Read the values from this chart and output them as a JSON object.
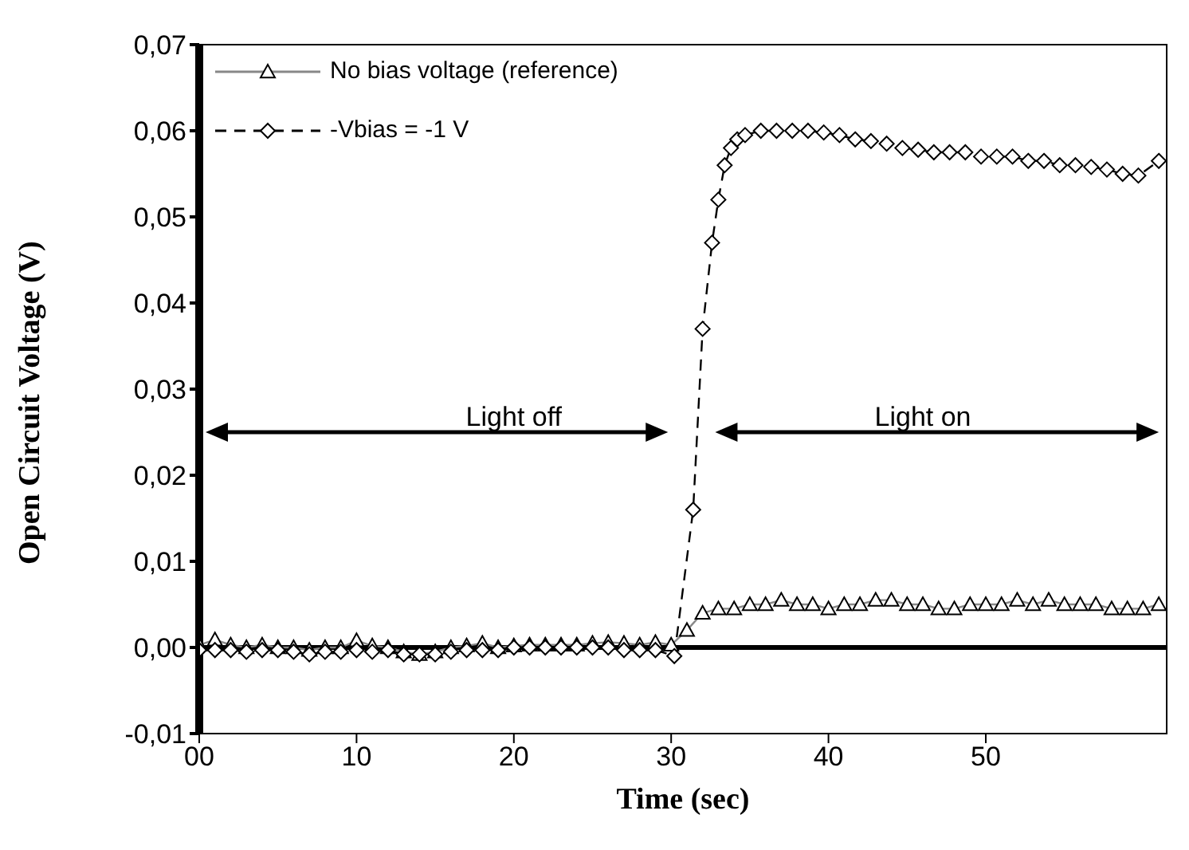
{
  "chart_data": {
    "type": "line",
    "xlabel": "Time (sec)",
    "ylabel": "Open Circuit Voltage (V)",
    "xlim": [
      0,
      61.5
    ],
    "xticks": [
      {
        "value": 0,
        "label": "00"
      },
      10,
      20,
      30,
      40,
      50
    ],
    "ylim": [
      -0.01,
      0.07
    ],
    "yticks": [
      {
        "value": -0.01,
        "label": "-0,01"
      },
      {
        "value": 0,
        "label": "0,00"
      },
      {
        "value": 0.01,
        "label": "0,01"
      },
      {
        "value": 0.02,
        "label": "0,02"
      },
      {
        "value": 0.03,
        "label": "0,03"
      },
      {
        "value": 0.04,
        "label": "0,04"
      },
      {
        "value": 0.05,
        "label": "0,05"
      },
      {
        "value": 0.06,
        "label": "0,06"
      },
      {
        "value": 0.07,
        "label": "0,07"
      }
    ],
    "legend": "top left",
    "ref_lines": [
      {
        "axis": "y",
        "value": 0,
        "color": "#000000"
      }
    ],
    "annotations": [
      "Light off",
      "Light on"
    ],
    "series": [
      {
        "name": "No bias voltage (reference)",
        "color": "#888888",
        "marker": "triangle",
        "line_style": "solid",
        "x": [
          0,
          1,
          2,
          3,
          4,
          5,
          6,
          7,
          8,
          9,
          10,
          11,
          12,
          13,
          14,
          15,
          16,
          17,
          18,
          19,
          20,
          21,
          22,
          23,
          24,
          25,
          26,
          27,
          28,
          29,
          30,
          31,
          32,
          33,
          34,
          35,
          36,
          37,
          38,
          39,
          40,
          41,
          42,
          43,
          44,
          45,
          46,
          47,
          48,
          49,
          50,
          51,
          52,
          53,
          54,
          55,
          56,
          57,
          58,
          59,
          60,
          61
        ],
        "values": [
          0.0003,
          0.0009,
          0.0003,
          0,
          0.0003,
          0,
          0,
          -0.0003,
          0,
          0,
          0.0008,
          0.0002,
          0,
          -0.0005,
          -0.0008,
          -0.0005,
          0,
          0.0002,
          0.0005,
          0,
          0.0002,
          0.0003,
          0.0003,
          0.0003,
          0.0003,
          0.0005,
          0.0006,
          0.0005,
          0.0003,
          0.0006,
          0.0003,
          0.002,
          0.004,
          0.0045,
          0.0045,
          0.005,
          0.005,
          0.0055,
          0.005,
          0.005,
          0.0045,
          0.005,
          0.005,
          0.0055,
          0.0055,
          0.005,
          0.005,
          0.0045,
          0.0045,
          0.005,
          0.005,
          0.005,
          0.0055,
          0.005,
          0.0055,
          0.005,
          0.005,
          0.005,
          0.0045,
          0.0045,
          0.0045,
          0.005
        ]
      },
      {
        "name": "-Vbias = -1 V",
        "color": "#000000",
        "marker": "diamond",
        "line_style": "dashed",
        "x": [
          0,
          1,
          2,
          3,
          4,
          5,
          6,
          7,
          8,
          9,
          10,
          11,
          12,
          13,
          14,
          15,
          16,
          17,
          18,
          19,
          20,
          21,
          22,
          23,
          24,
          25,
          26,
          27,
          28,
          29,
          30.2,
          31.4,
          32,
          32.6,
          33,
          33.4,
          33.8,
          34.2,
          34.7,
          35.7,
          36.7,
          37.7,
          38.7,
          39.7,
          40.7,
          41.7,
          42.7,
          43.7,
          44.7,
          45.7,
          46.7,
          47.7,
          48.7,
          49.7,
          50.7,
          51.7,
          52.7,
          53.7,
          54.7,
          55.7,
          56.7,
          57.7,
          58.7,
          59.7,
          61
        ],
        "values": [
          -0.0003,
          -0.0003,
          -0.0003,
          -0.0005,
          -0.0003,
          -0.0003,
          -0.0005,
          -0.0008,
          -0.0005,
          -0.0005,
          -0.0003,
          -0.0005,
          -0.0003,
          -0.0008,
          -0.0008,
          -0.0008,
          -0.0005,
          -0.0003,
          -0.0003,
          -0.0003,
          0,
          0,
          0,
          0,
          0,
          0,
          0,
          -0.0003,
          -0.0003,
          -0.0003,
          -0.001,
          0.016,
          0.037,
          0.047,
          0.052,
          0.056,
          0.058,
          0.059,
          0.0595,
          0.06,
          0.06,
          0.06,
          0.06,
          0.0598,
          0.0595,
          0.059,
          0.0588,
          0.0585,
          0.058,
          0.0578,
          0.0575,
          0.0575,
          0.0575,
          0.057,
          0.057,
          0.057,
          0.0565,
          0.0565,
          0.056,
          0.056,
          0.0558,
          0.0555,
          0.055,
          0.0548,
          0.0565
        ]
      }
    ]
  }
}
